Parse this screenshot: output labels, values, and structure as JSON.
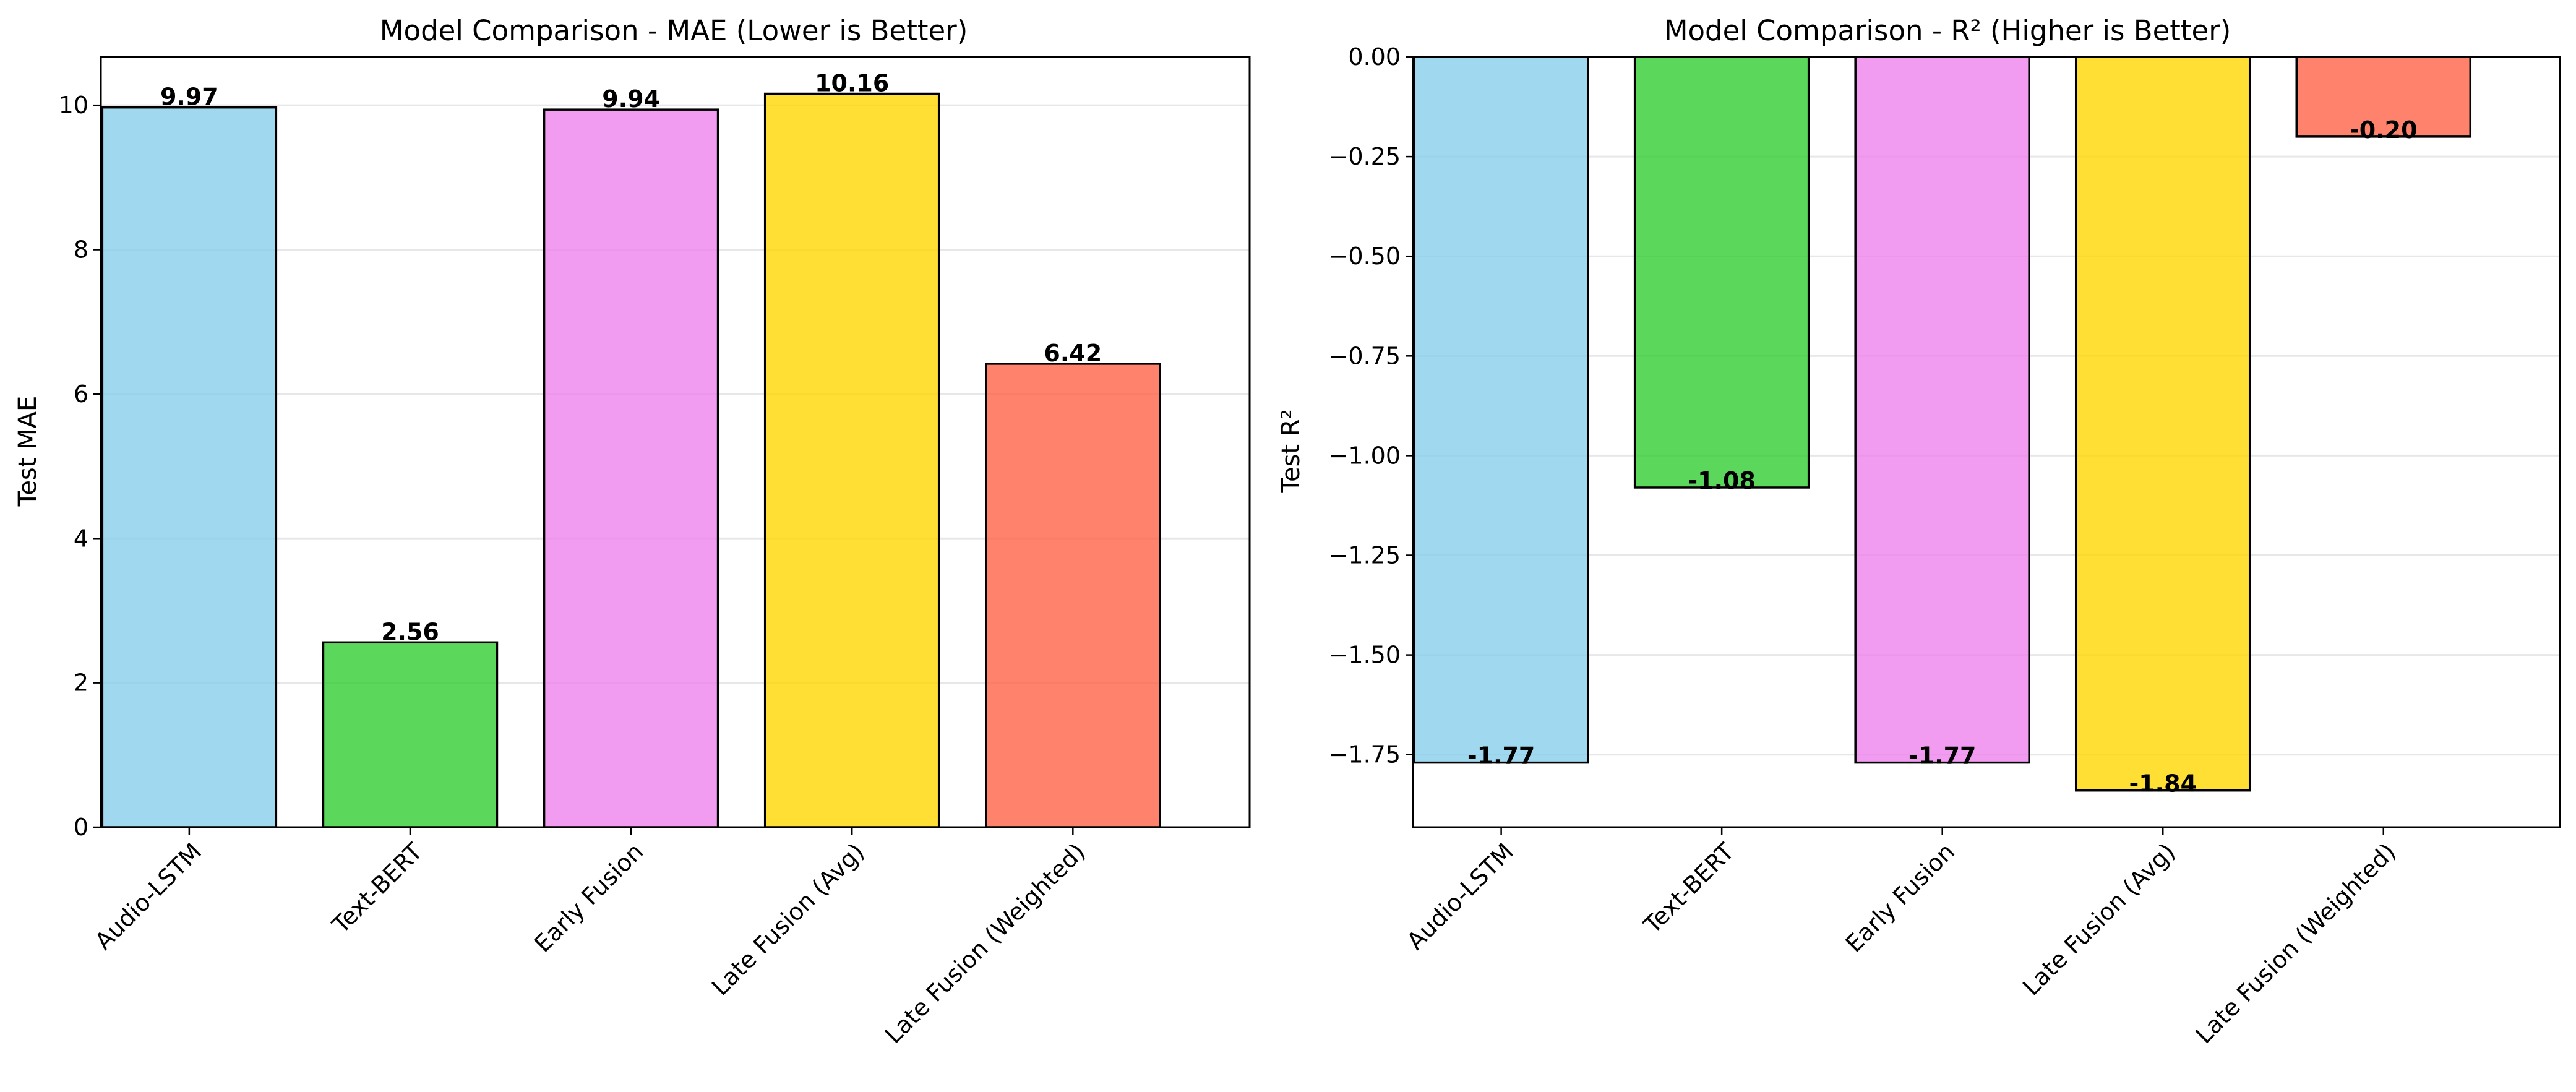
{
  "chart_data": [
    {
      "type": "bar",
      "title": "Model Comparison - MAE (Lower is Better)",
      "xlabel": "",
      "ylabel": "Test MAE",
      "categories": [
        "Audio-LSTM",
        "Text-BERT",
        "Early Fusion",
        "Late Fusion (Avg)",
        "Late Fusion (Weighted)"
      ],
      "values": [
        9.97,
        2.56,
        9.94,
        10.16,
        6.42
      ],
      "value_labels": [
        "9.97",
        "2.56",
        "9.94",
        "10.16",
        "6.42"
      ],
      "colors": [
        "#87CEEB",
        "#32CD32",
        "#EE82EE",
        "#FFD700",
        "#FF6347"
      ],
      "ylim": [
        0,
        10.67
      ],
      "yticks": [
        0,
        2,
        4,
        6,
        8,
        10
      ],
      "ytick_labels": [
        "0",
        "2",
        "4",
        "6",
        "8",
        "10"
      ],
      "grid": "y",
      "legend": "none"
    },
    {
      "type": "bar",
      "title": "Model Comparison - R² (Higher is Better)",
      "xlabel": "",
      "ylabel": "Test R²",
      "categories": [
        "Audio-LSTM",
        "Text-BERT",
        "Early Fusion",
        "Late Fusion (Avg)",
        "Late Fusion (Weighted)"
      ],
      "values": [
        -1.77,
        -1.08,
        -1.77,
        -1.84,
        -0.2
      ],
      "value_labels": [
        "-1.77",
        "-1.08",
        "-1.77",
        "-1.84",
        "-0.20"
      ],
      "colors": [
        "#87CEEB",
        "#32CD32",
        "#EE82EE",
        "#FFD700",
        "#FF6347"
      ],
      "ylim": [
        -1.932,
        0
      ],
      "yticks": [
        0,
        -0.25,
        -0.5,
        -0.75,
        -1.0,
        -1.25,
        -1.5,
        -1.75
      ],
      "ytick_labels": [
        "0.00",
        "−0.25",
        "−0.50",
        "−0.75",
        "−1.00",
        "−1.25",
        "−1.50",
        "−1.75"
      ],
      "grid": "y",
      "legend": "none"
    }
  ]
}
